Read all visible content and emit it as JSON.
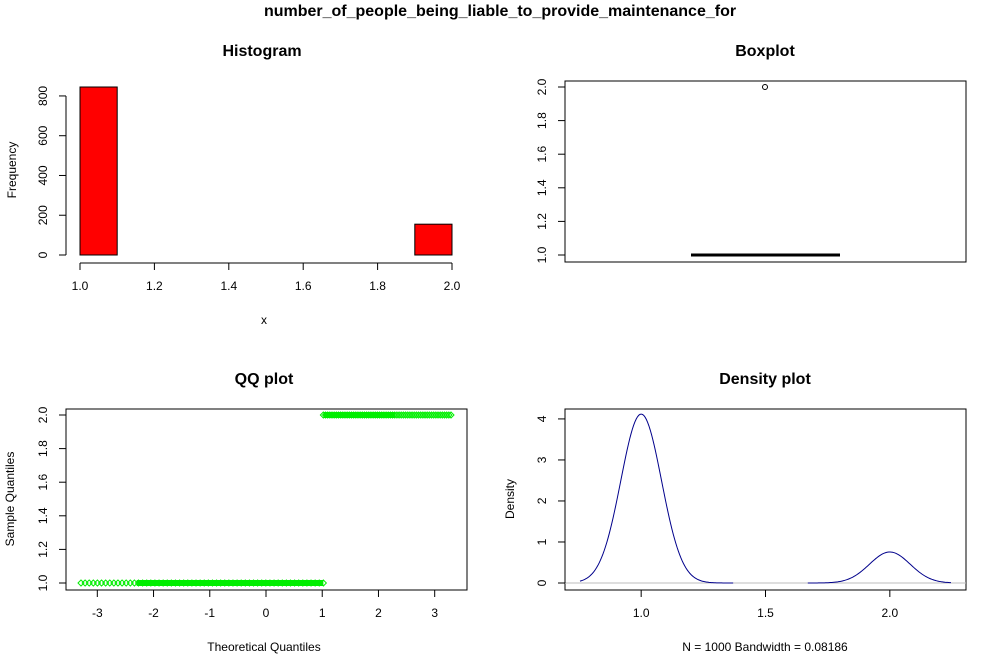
{
  "page_title": "number_of_people_being_liable_to_provide_maintenance_for",
  "chart_data": [
    {
      "type": "bar",
      "title": "Histogram",
      "xlabel": "x",
      "ylabel": "Frequency",
      "bins": [
        {
          "from": 1.0,
          "to": 1.1,
          "count": 845
        },
        {
          "from": 1.1,
          "to": 1.2,
          "count": 0
        },
        {
          "from": 1.2,
          "to": 1.3,
          "count": 0
        },
        {
          "from": 1.3,
          "to": 1.4,
          "count": 0
        },
        {
          "from": 1.4,
          "to": 1.5,
          "count": 0
        },
        {
          "from": 1.5,
          "to": 1.6,
          "count": 0
        },
        {
          "from": 1.6,
          "to": 1.7,
          "count": 0
        },
        {
          "from": 1.7,
          "to": 1.8,
          "count": 0
        },
        {
          "from": 1.8,
          "to": 1.9,
          "count": 0
        },
        {
          "from": 1.9,
          "to": 2.0,
          "count": 155
        }
      ],
      "xlim": [
        1.0,
        2.0
      ],
      "ylim": [
        0,
        845
      ],
      "xticks": [
        "1.0",
        "1.2",
        "1.4",
        "1.6",
        "1.8",
        "2.0"
      ],
      "yticks": [
        "0",
        "200",
        "400",
        "600",
        "800"
      ],
      "bar_color": "#ff0000"
    },
    {
      "type": "box",
      "title": "Boxplot",
      "median": 1.0,
      "q1": 1.0,
      "q3": 1.0,
      "whisker_low": 1.0,
      "whisker_high": 1.0,
      "outliers": [
        2.0
      ],
      "ylim": [
        1.0,
        2.0
      ],
      "yticks": [
        "1.0",
        "1.2",
        "1.4",
        "1.6",
        "1.8",
        "2.0"
      ]
    },
    {
      "type": "scatter",
      "title": "QQ plot",
      "xlabel": "Theoretical Quantiles",
      "ylabel": "Sample Quantiles",
      "lower_group": {
        "y": 1.0,
        "x_min": -3.29,
        "x_max": 1.02
      },
      "upper_group": {
        "y": 2.0,
        "x_min": 1.02,
        "x_max": 3.29
      },
      "xlim": [
        -3.29,
        3.29
      ],
      "ylim": [
        1.0,
        2.0
      ],
      "xticks": [
        "-3",
        "-2",
        "-1",
        "0",
        "1",
        "2",
        "3"
      ],
      "yticks": [
        "1.0",
        "1.2",
        "1.4",
        "1.6",
        "1.8",
        "2.0"
      ],
      "point_color": "#00ee00"
    },
    {
      "type": "line",
      "title": "Density plot",
      "xlabel": "N = 1000   Bandwidth = 0.08186",
      "ylabel": "Density",
      "components": [
        {
          "center": 1.0,
          "weight": 0.845,
          "from": 0.754,
          "to": 1.37
        },
        {
          "center": 2.0,
          "weight": 0.155,
          "from": 1.67,
          "to": 2.246
        }
      ],
      "bandwidth": 0.08186,
      "xlim": [
        0.754,
        2.246
      ],
      "ylim": [
        0,
        4.12
      ],
      "xticks": [
        "1.0",
        "1.5",
        "2.0"
      ],
      "yticks": [
        "0",
        "1",
        "2",
        "3",
        "4"
      ],
      "line_color": "#00008b",
      "baseline_color": "#bebebe"
    }
  ]
}
